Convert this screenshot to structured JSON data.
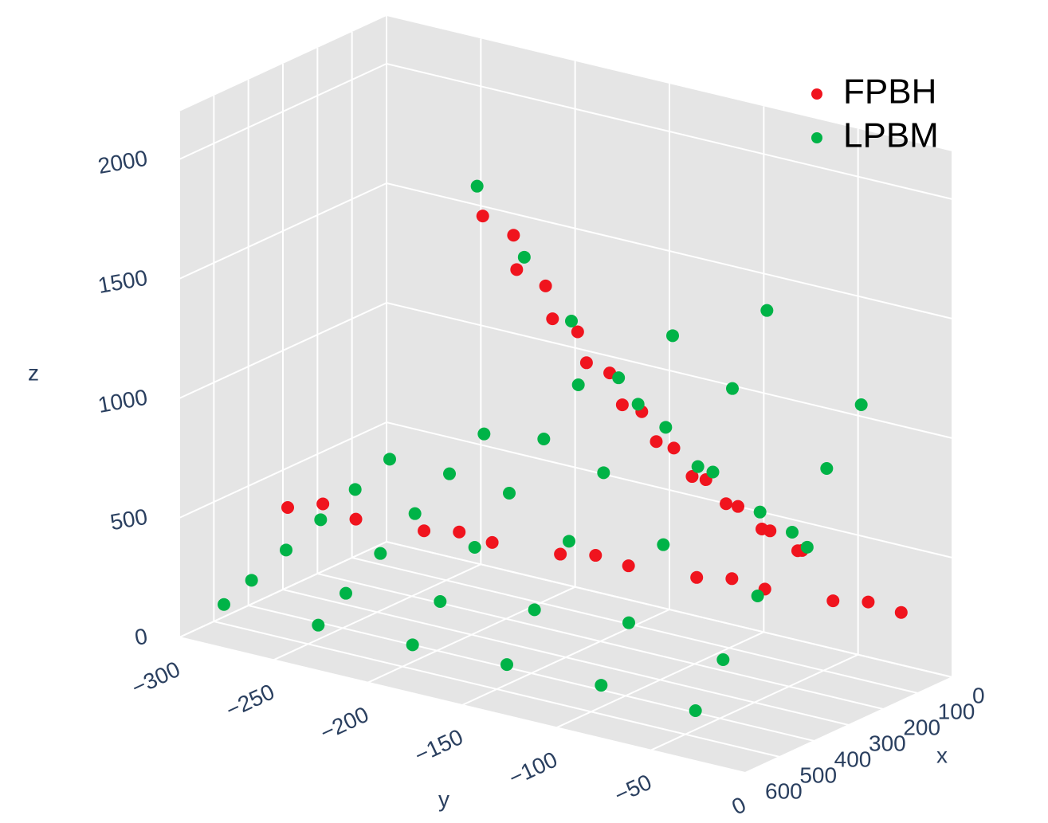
{
  "chart_data": {
    "type": "scatter3d",
    "x_label": "x",
    "y_label": "y",
    "z_label": "z",
    "xlim": [
      0,
      600
    ],
    "ylim": [
      -300,
      0
    ],
    "zlim": [
      0,
      2200
    ],
    "xticks": [
      0,
      100,
      200,
      300,
      400,
      500,
      600
    ],
    "yticks": [
      {
        "value": -300,
        "label": "−300"
      },
      {
        "value": -250,
        "label": "−250"
      },
      {
        "value": -200,
        "label": "−200"
      },
      {
        "value": -150,
        "label": "−150"
      },
      {
        "value": -100,
        "label": "−100"
      },
      {
        "value": -50,
        "label": "−50"
      },
      0
    ],
    "zticks": [
      0,
      500,
      1000,
      1500,
      2000
    ],
    "grid": true,
    "legend": "upper right",
    "series": [
      {
        "name": "FPBH",
        "color": "#f0141e",
        "x": [
          450,
          411,
          372,
          333,
          294,
          255,
          216,
          177,
          138,
          99,
          430,
          352,
          274,
          196,
          118,
          60,
          60,
          60,
          60,
          60,
          60,
          60,
          60,
          60,
          60,
          20,
          20,
          20,
          20,
          20,
          20,
          20,
          20,
          20,
          20
        ],
        "y": [
          -270,
          -241,
          -212,
          -183,
          -154,
          -125,
          -96,
          -67,
          -38,
          -9,
          -255,
          -197,
          -139,
          -81,
          -23,
          -238,
          -220,
          -201,
          -183,
          -164,
          -146,
          -127,
          -109,
          -90,
          -71,
          -229,
          -212,
          -195,
          -178,
          -161,
          -144,
          -127,
          -110,
          -93,
          -76
        ],
        "z": [
          500,
          480,
          460,
          440,
          420,
          400,
          380,
          360,
          340,
          320,
          530,
          470,
          430,
          390,
          350,
          1520,
          1330,
          1160,
          1010,
          870,
          750,
          640,
          560,
          490,
          435,
          1430,
          1250,
          1090,
          950,
          820,
          700,
          600,
          520,
          450,
          400
        ]
      },
      {
        "name": "LPBM",
        "color": "#00b347",
        "x": [
          100,
          200,
          300,
          400,
          500,
          580,
          100,
          200,
          300,
          400,
          500,
          580,
          100,
          200,
          300,
          400,
          500,
          580,
          100,
          200,
          300,
          400,
          500,
          580,
          100,
          200,
          300,
          400,
          500,
          580,
          100,
          200,
          300,
          400,
          500,
          580,
          120,
          120,
          120,
          120,
          120,
          120,
          120,
          120
        ],
        "y": [
          -280,
          -280,
          -280,
          -280,
          -280,
          -280,
          -230,
          -230,
          -230,
          -230,
          -230,
          -230,
          -180,
          -180,
          -180,
          -180,
          -180,
          -180,
          -130,
          -130,
          -130,
          -130,
          -130,
          -130,
          -80,
          -80,
          -80,
          -80,
          -80,
          -80,
          -30,
          -30,
          -30,
          -30,
          -30,
          -30,
          -230,
          -205,
          -180,
          -155,
          -130,
          -105,
          -80,
          -55
        ],
        "z": [
          450,
          390,
          330,
          270,
          210,
          162,
          650,
          550,
          450,
          350,
          250,
          170,
          950,
          790,
          630,
          470,
          310,
          182,
          1250,
          1030,
          810,
          590,
          370,
          194,
          1450,
          1190,
          930,
          670,
          410,
          202,
          1150,
          950,
          750,
          550,
          350,
          190,
          1700,
          1450,
          1230,
          1040,
          880,
          740,
          620,
          520
        ]
      }
    ]
  }
}
